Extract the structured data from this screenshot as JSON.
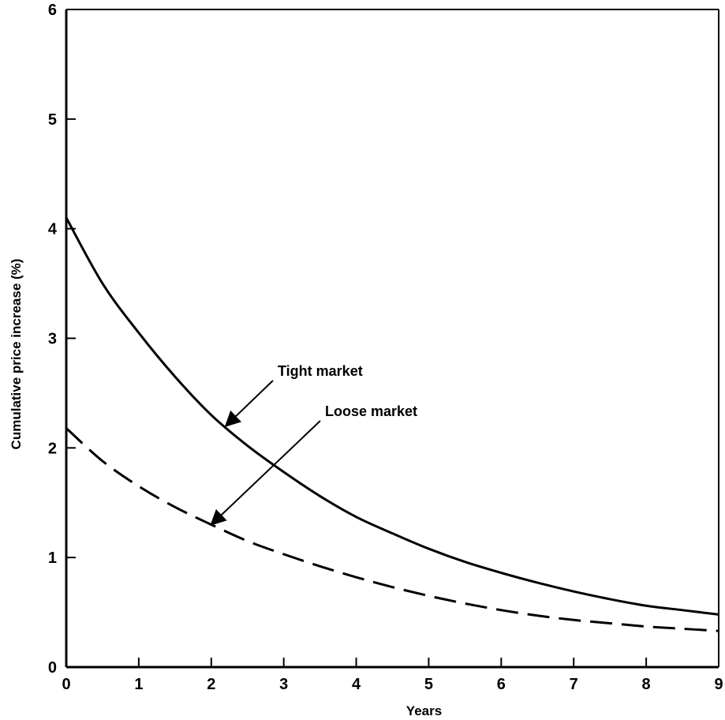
{
  "chart_data": {
    "type": "line",
    "title": "",
    "xlabel": "Years",
    "ylabel": "Cumulative price increase (%)",
    "xlim": [
      0,
      9
    ],
    "ylim": [
      0,
      6
    ],
    "xticks": [
      "0",
      "1",
      "2",
      "3",
      "4",
      "5",
      "6",
      "7",
      "8",
      "9"
    ],
    "yticks": [
      "0",
      "1",
      "2",
      "3",
      "4",
      "5",
      "6"
    ],
    "grid": false,
    "legend": "none",
    "series": [
      {
        "name": "Tight market",
        "style": "solid",
        "color": "#000000",
        "x": [
          0,
          0.5,
          1,
          1.5,
          2,
          2.5,
          3,
          3.5,
          4,
          4.5,
          5,
          5.5,
          6,
          6.5,
          7,
          7.5,
          8,
          8.5,
          9
        ],
        "y": [
          4.1,
          3.5,
          3.05,
          2.65,
          2.3,
          2.02,
          1.78,
          1.56,
          1.37,
          1.22,
          1.08,
          0.96,
          0.86,
          0.77,
          0.69,
          0.62,
          0.56,
          0.52,
          0.48
        ]
      },
      {
        "name": "Loose market",
        "style": "dashed",
        "color": "#000000",
        "x": [
          0,
          0.5,
          1,
          1.5,
          2,
          2.5,
          3,
          3.5,
          4,
          4.5,
          5,
          5.5,
          6,
          6.5,
          7,
          7.5,
          8,
          8.5,
          9
        ],
        "y": [
          2.18,
          1.88,
          1.65,
          1.46,
          1.3,
          1.15,
          1.03,
          0.92,
          0.82,
          0.73,
          0.65,
          0.58,
          0.52,
          0.47,
          0.43,
          0.4,
          0.37,
          0.35,
          0.33
        ]
      }
    ],
    "annotations": [
      {
        "text": "Tight market",
        "arrow_to": {
          "x": 2.2,
          "y": 2.2
        }
      },
      {
        "text": "Loose market",
        "arrow_to": {
          "x": 2.0,
          "y": 1.3
        }
      }
    ]
  }
}
